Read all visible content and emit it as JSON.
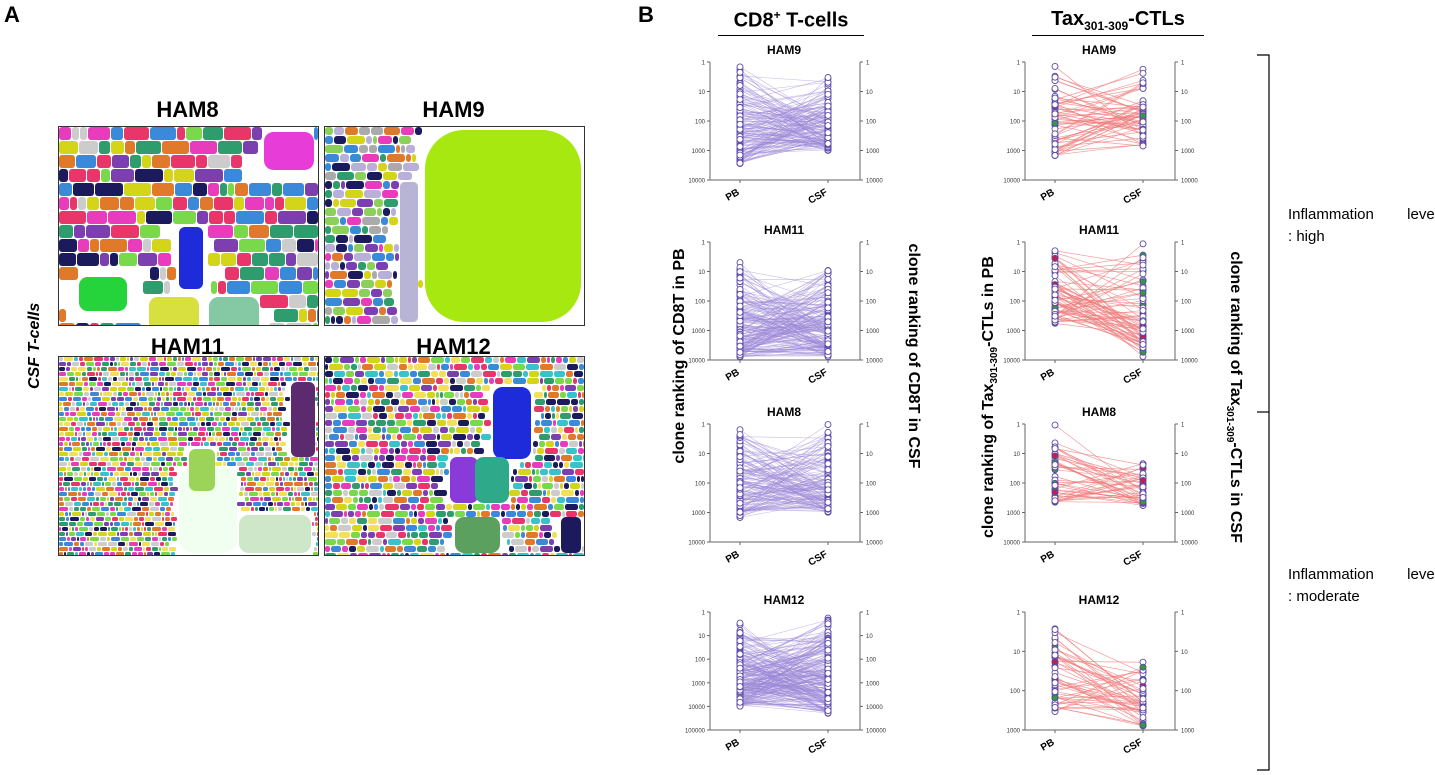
{
  "panelA": {
    "letter": "A",
    "side_label": "CSF T-cells",
    "treemaps": [
      {
        "title": "HAM8",
        "palette": [
          "#e83cbd",
          "#2e9c6c",
          "#d4d418",
          "#3a8ad9",
          "#7b3fb0",
          "#1a1a5c",
          "#e07a2a",
          "#7ad94a",
          "#cccccc",
          "#e8356a"
        ],
        "big": [
          "#e83cd8",
          "#d8e040",
          "#1d2bdb",
          "#25d43a",
          "#84c9a4"
        ]
      },
      {
        "title": "HAM9",
        "palette": [
          "#2e9c6c",
          "#1a1a5c",
          "#3a8ad9",
          "#e07a2a",
          "#b8b0d8",
          "#d4d418",
          "#7b3fb0",
          "#e83cbd",
          "#8ad05a",
          "#aaaaaa"
        ],
        "big": [
          "#a6e80f",
          "#b8b4d6"
        ]
      },
      {
        "title": "HAM11",
        "palette": [
          "#e83cbd",
          "#2e9c6c",
          "#d4d418",
          "#3a8ad9",
          "#7b3fb0",
          "#1a1a5c",
          "#e07a2a",
          "#7ad94a",
          "#cccccc",
          "#e8356a",
          "#39c2c9",
          "#f2e05a"
        ],
        "big": [
          "#f0fff0",
          "#cfe7c9",
          "#9cd45a",
          "#5c2a6e"
        ]
      },
      {
        "title": "HAM12",
        "palette": [
          "#e83cbd",
          "#2e9c6c",
          "#d4d418",
          "#3a8ad9",
          "#7b3fb0",
          "#1a1a5c",
          "#e07a2a",
          "#7ad94a",
          "#cccccc",
          "#e8356a",
          "#39c2c9",
          "#f2e05a"
        ],
        "big": [
          "#1d2bdb",
          "#8a3ad9",
          "#2eaa8a",
          "#5ca060",
          "#1a1a5c"
        ]
      }
    ]
  },
  "panelB": {
    "letter": "B",
    "col1_title": {
      "main": "CD8",
      "sup": "+",
      "rest": " T-cells"
    },
    "col2_title": {
      "pre": "Tax",
      "sub": "301-309",
      "rest": "-CTLs"
    },
    "col1_left_label": "clone ranking of CD8T in PB",
    "col1_right_label": "clone ranking of CD8T in CSF",
    "col2_left_label": {
      "pre": "clone ranking of Tax",
      "sub": "301-309",
      "rest": "-CTLs in PB"
    },
    "col2_right_label": {
      "pre": "clone ranking of Tax",
      "sub": "301-309",
      "rest": "-CTLs in CSF"
    },
    "inflammation": [
      {
        "line1": [
          "Inflammation",
          "level"
        ],
        "line2": ": high"
      },
      {
        "line1": [
          "Inflammation",
          "level"
        ],
        "line2": ": moderate"
      }
    ]
  },
  "chart_data": [
    {
      "type": "scatter",
      "title": "HAM9",
      "group": "CD8+ T-cells",
      "categories": [
        "PB",
        "CSF"
      ],
      "ylim": [
        1,
        10000
      ],
      "yscale": "log-reversed",
      "yticks": [
        "1",
        "10",
        "100",
        "1000",
        "10000"
      ],
      "n_clones": 150,
      "color": "#9a86d6",
      "pb_range": [
        1,
        3000
      ],
      "csf_range": [
        3,
        1000
      ]
    },
    {
      "type": "scatter",
      "title": "HAM11",
      "group": "CD8+ T-cells",
      "categories": [
        "PB",
        "CSF"
      ],
      "ylim": [
        1,
        10000
      ],
      "yscale": "log-reversed",
      "yticks": [
        "1",
        "10",
        "100",
        "1000",
        "10000"
      ],
      "n_clones": 180,
      "color": "#9a86d6",
      "pb_range": [
        4,
        8000
      ],
      "csf_range": [
        5,
        8000
      ]
    },
    {
      "type": "scatter",
      "title": "HAM8",
      "group": "CD8+ T-cells",
      "categories": [
        "PB",
        "CSF"
      ],
      "ylim": [
        1,
        10000
      ],
      "yscale": "log-reversed",
      "yticks": [
        "1",
        "10",
        "100",
        "1000",
        "10000"
      ],
      "n_clones": 140,
      "color": "#9a86d6",
      "pb_range": [
        1,
        1500
      ],
      "csf_range": [
        1,
        1000
      ]
    },
    {
      "type": "scatter",
      "title": "HAM12",
      "group": "CD8+ T-cells",
      "categories": [
        "PB",
        "CSF"
      ],
      "ylim": [
        1,
        100000
      ],
      "yscale": "log-reversed",
      "yticks": [
        "1",
        "10",
        "100",
        "1000",
        "10000",
        "100000"
      ],
      "n_clones": 220,
      "color": "#9a86d6",
      "pb_range": [
        2,
        10000
      ],
      "csf_range": [
        1,
        20000
      ]
    },
    {
      "type": "scatter",
      "title": "HAM9",
      "group": "Tax301-309-CTLs",
      "categories": [
        "PB",
        "CSF"
      ],
      "ylim": [
        1,
        10000
      ],
      "yscale": "log-reversed",
      "yticks": [
        "1",
        "10",
        "100",
        "1000",
        "10000"
      ],
      "n_clones": 60,
      "color": "#f07a7a",
      "pb_range": [
        1,
        1500
      ],
      "csf_range": [
        1,
        800
      ]
    },
    {
      "type": "scatter",
      "title": "HAM11",
      "group": "Tax301-309-CTLs",
      "categories": [
        "PB",
        "CSF"
      ],
      "ylim": [
        1,
        10000
      ],
      "yscale": "log-reversed",
      "yticks": [
        "1",
        "10",
        "100",
        "1000",
        "10000"
      ],
      "n_clones": 70,
      "color": "#f07a7a",
      "pb_range": [
        1,
        600
      ],
      "csf_range": [
        1,
        8000
      ]
    },
    {
      "type": "scatter",
      "title": "HAM8",
      "group": "Tax301-309-CTLs",
      "categories": [
        "PB",
        "CSF"
      ],
      "ylim": [
        1,
        10000
      ],
      "yscale": "log-reversed",
      "yticks": [
        "1",
        "10",
        "100",
        "1000",
        "10000"
      ],
      "n_clones": 45,
      "color": "#f07a7a",
      "pb_range": [
        1,
        600
      ],
      "csf_range": [
        20,
        700
      ]
    },
    {
      "type": "scatter",
      "title": "HAM12",
      "group": "Tax301-309-CTLs",
      "categories": [
        "PB",
        "CSF"
      ],
      "ylim": [
        1,
        1000
      ],
      "yscale": "log-reversed",
      "yticks": [
        "1",
        "10",
        "100",
        "1000"
      ],
      "n_clones": 50,
      "color": "#f07a7a",
      "pb_range": [
        1,
        350
      ],
      "csf_range": [
        10,
        800
      ]
    }
  ]
}
